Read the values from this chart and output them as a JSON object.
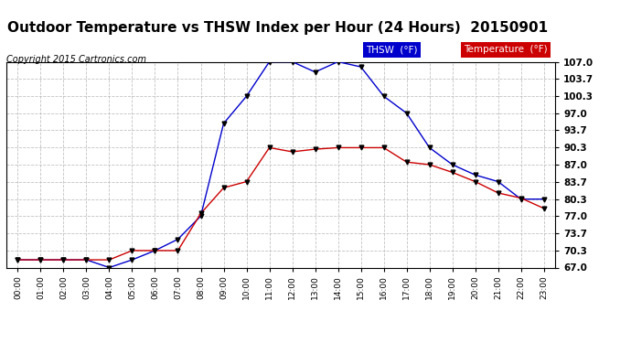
{
  "title": "Outdoor Temperature vs THSW Index per Hour (24 Hours)  20150901",
  "copyright": "Copyright 2015 Cartronics.com",
  "hours": [
    "00:00",
    "01:00",
    "02:00",
    "03:00",
    "04:00",
    "05:00",
    "06:00",
    "07:00",
    "08:00",
    "09:00",
    "10:00",
    "11:00",
    "12:00",
    "13:00",
    "14:00",
    "15:00",
    "16:00",
    "17:00",
    "18:00",
    "19:00",
    "20:00",
    "21:00",
    "22:00",
    "23:00"
  ],
  "thsw": [
    68.5,
    68.5,
    68.5,
    68.5,
    67.0,
    68.5,
    70.3,
    72.5,
    77.0,
    95.0,
    100.3,
    107.0,
    107.0,
    105.0,
    107.0,
    106.0,
    100.3,
    97.0,
    90.3,
    87.0,
    85.0,
    83.7,
    80.3,
    80.3
  ],
  "temp": [
    68.5,
    68.5,
    68.5,
    68.5,
    68.5,
    70.3,
    70.3,
    70.3,
    77.5,
    82.5,
    83.7,
    90.3,
    89.5,
    90.0,
    90.3,
    90.3,
    90.3,
    87.5,
    87.0,
    85.5,
    83.7,
    81.5,
    80.5,
    78.5
  ],
  "thsw_color": "#0000cc",
  "temp_color": "#cc0000",
  "ylim_min": 67.0,
  "ylim_max": 107.0,
  "yticks": [
    67.0,
    70.3,
    73.7,
    77.0,
    80.3,
    83.7,
    87.0,
    90.3,
    93.7,
    97.0,
    100.3,
    103.7,
    107.0
  ],
  "bg_color": "#ffffff",
  "grid_color": "#bbbbbb",
  "title_fontsize": 11,
  "copyright_fontsize": 7,
  "legend_thsw_bg": "#0000cc",
  "legend_temp_bg": "#cc0000",
  "legend_thsw_label": "THSW  (°F)",
  "legend_temp_label": "Temperature  (°F)"
}
